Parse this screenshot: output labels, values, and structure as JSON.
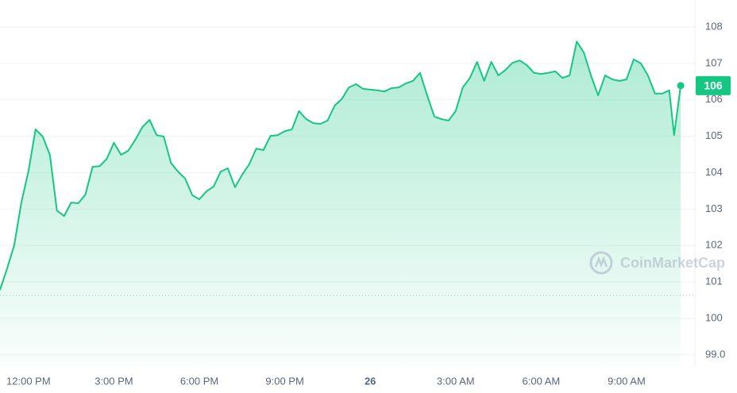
{
  "chart_data": {
    "type": "line",
    "x": [
      -1,
      -0.75,
      -0.5,
      -0.25,
      0,
      0.25,
      0.5,
      0.75,
      1,
      1.25,
      1.5,
      1.75,
      2,
      2.25,
      2.5,
      2.75,
      3,
      3.25,
      3.5,
      3.75,
      4,
      4.25,
      4.5,
      4.75,
      5,
      5.25,
      5.5,
      5.75,
      6,
      6.25,
      6.5,
      6.75,
      7,
      7.25,
      7.5,
      7.75,
      8,
      8.25,
      8.5,
      8.75,
      9,
      9.25,
      9.5,
      9.75,
      10,
      10.25,
      10.5,
      10.75,
      11,
      11.25,
      11.5,
      11.75,
      12,
      12.25,
      12.5,
      12.75,
      13,
      13.25,
      13.5,
      13.75,
      14,
      14.25,
      14.5,
      14.75,
      15,
      15.25,
      15.5,
      15.75,
      16,
      16.25,
      16.5,
      16.75,
      17,
      17.25,
      17.5,
      17.75,
      18,
      18.25,
      18.5,
      18.75,
      19,
      19.25,
      19.5,
      19.75,
      20,
      20.25,
      20.5,
      20.75,
      21,
      21.25,
      21.5,
      21.75,
      22,
      22.25,
      22.5,
      22.67,
      22.9
    ],
    "series": [
      {
        "color": "#16c784",
        "values": [
          100.78,
          101.37,
          102.01,
          103.18,
          104.05,
          105.19,
          104.99,
          104.49,
          102.96,
          102.81,
          103.18,
          103.16,
          103.4,
          104.16,
          104.18,
          104.38,
          104.82,
          104.49,
          104.6,
          104.9,
          105.25,
          105.45,
          105.03,
          104.99,
          104.27,
          104.03,
          103.84,
          103.38,
          103.27,
          103.49,
          103.62,
          104.03,
          104.12,
          103.6,
          103.94,
          104.23,
          104.66,
          104.62,
          105.01,
          105.03,
          105.14,
          105.19,
          105.69,
          105.47,
          105.36,
          105.34,
          105.43,
          105.84,
          106.02,
          106.34,
          106.43,
          106.3,
          106.28,
          106.26,
          106.23,
          106.32,
          106.34,
          106.45,
          106.52,
          106.74,
          106.12,
          105.54,
          105.47,
          105.43,
          105.69,
          106.34,
          106.6,
          107.04,
          106.52,
          107.04,
          106.67,
          106.82,
          107.02,
          107.08,
          106.95,
          106.74,
          106.71,
          106.74,
          106.78,
          106.6,
          106.67,
          107.6,
          107.3,
          106.67,
          106.12,
          106.67,
          106.56,
          106.52,
          106.56,
          107.11,
          107.0,
          106.67,
          106.17,
          106.17,
          106.26,
          105.03,
          106.39
        ]
      }
    ],
    "xlim": [
      -1,
      23.4
    ],
    "xticks": [
      {
        "value": 0,
        "label": "12:00 PM"
      },
      {
        "value": 3,
        "label": "3:00 PM"
      },
      {
        "value": 6,
        "label": "6:00 PM"
      },
      {
        "value": 9,
        "label": "9:00 PM"
      },
      {
        "value": 12,
        "label": "26"
      },
      {
        "value": 15,
        "label": "3:00 AM"
      },
      {
        "value": 18,
        "label": "6:00 AM"
      },
      {
        "value": 21,
        "label": "9:00 AM"
      }
    ],
    "ylim": [
      98.67,
      108.74
    ],
    "yticks": [
      {
        "value": 99,
        "label": "99.0"
      },
      100,
      101,
      102,
      103,
      104,
      105,
      106,
      107,
      108
    ],
    "grid": true,
    "reference_value": 100.63,
    "current_price": {
      "value": 106.39,
      "label": "106"
    },
    "watermark": "CoinMarketCap"
  }
}
